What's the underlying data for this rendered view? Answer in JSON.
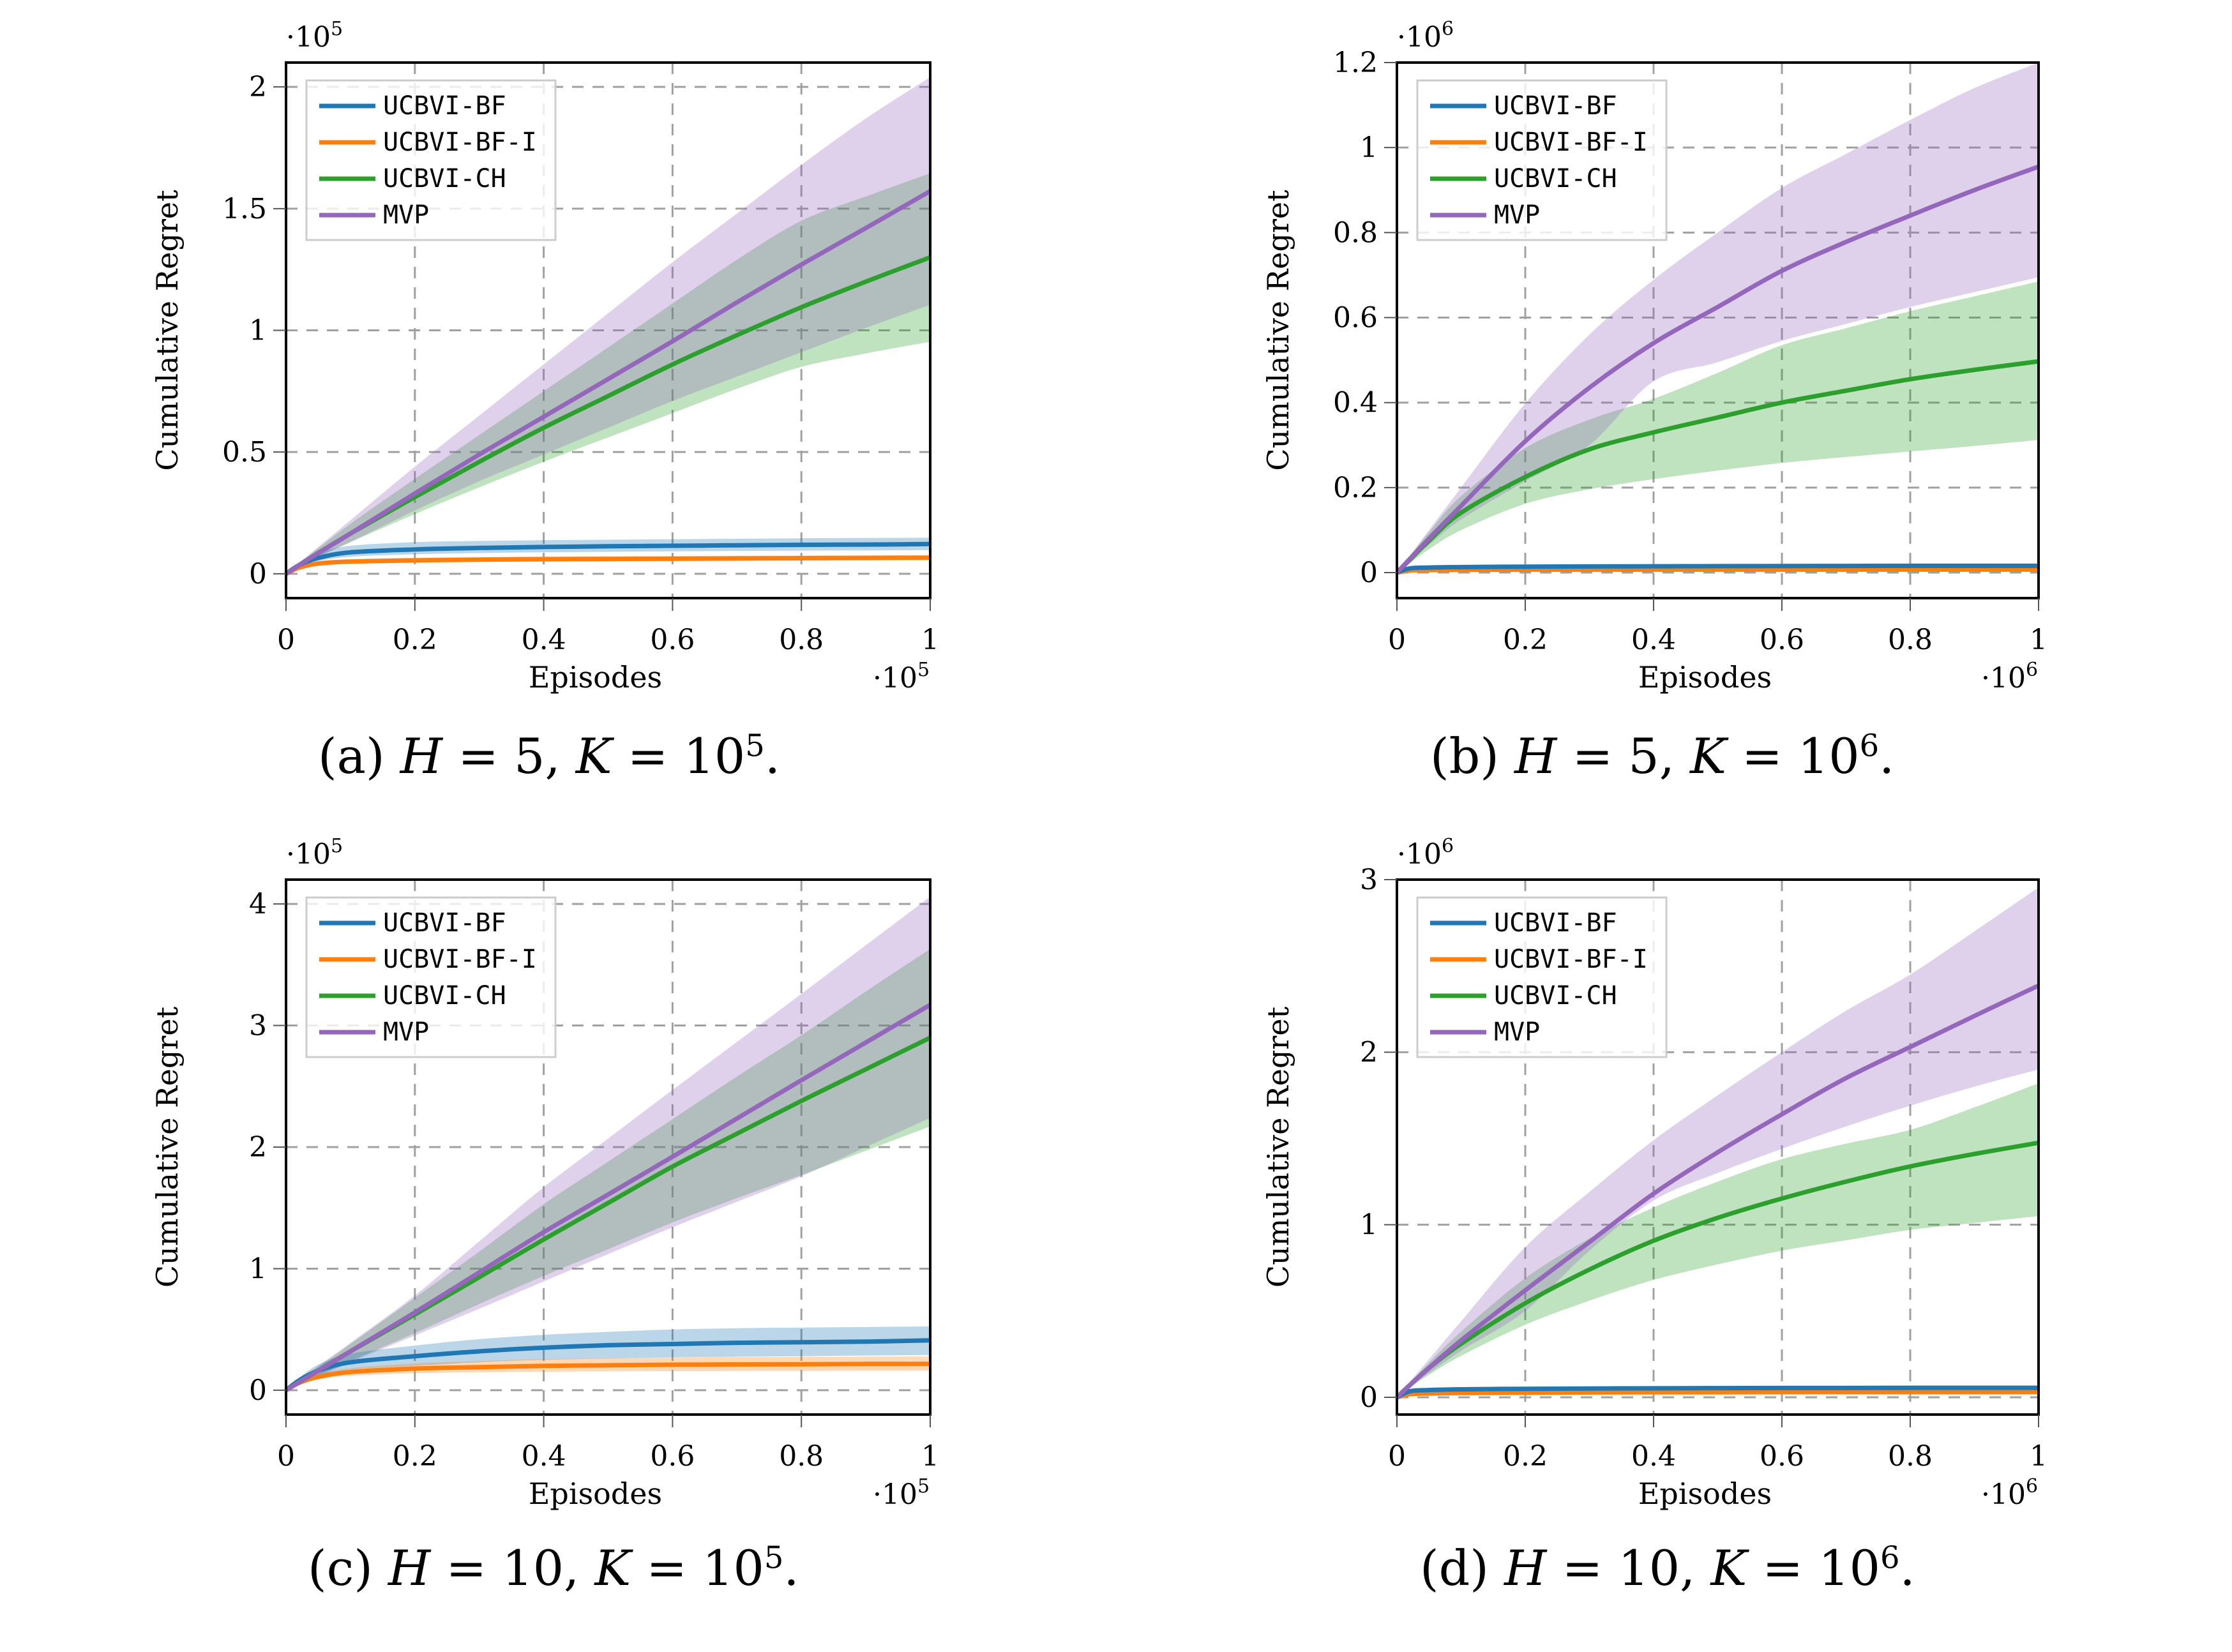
{
  "figure": {
    "panels": [
      {
        "id": "a",
        "caption_prefix": "(a)",
        "caption_H": "H",
        "caption_H_val": "= 5,",
        "caption_K": "K",
        "caption_K_val": "= 10",
        "caption_exp": "5",
        "caption_end": "."
      },
      {
        "id": "b",
        "caption_prefix": "(b)",
        "caption_H": "H",
        "caption_H_val": "= 5,",
        "caption_K": "K",
        "caption_K_val": "= 10",
        "caption_exp": "6",
        "caption_end": "."
      },
      {
        "id": "c",
        "caption_prefix": "(c)",
        "caption_H": "H",
        "caption_H_val": "= 10,",
        "caption_K": "K",
        "caption_K_val": "= 10",
        "caption_exp": "5",
        "caption_end": "."
      },
      {
        "id": "d",
        "caption_prefix": "(d)",
        "caption_H": "H",
        "caption_H_val": "= 10,",
        "caption_K": "K",
        "caption_K_val": "= 10",
        "caption_exp": "6",
        "caption_end": "."
      }
    ]
  },
  "colors": {
    "UCBVI-BF": "#1f77b4",
    "UCBVI-BF-I": "#ff7f0e",
    "UCBVI-CH": "#2ca02c",
    "MVP": "#9467bd",
    "grid": "#a0a0a0",
    "legend_border": "#cccccc"
  },
  "chart_data": [
    {
      "type": "line",
      "title": "(a) H = 5, K = 10^5.",
      "xlabel": "Episodes",
      "ylabel": "Cumulative Regret",
      "x_multiplier": "·10^5",
      "y_multiplier": "·10^5",
      "xlim": [
        0,
        1
      ],
      "ylim": [
        -0.1,
        2.1
      ],
      "xticks": [
        0,
        0.2,
        0.4,
        0.6,
        0.8,
        1
      ],
      "xtick_labels": [
        "0",
        "0.2",
        "0.4",
        "0.6",
        "0.8",
        "1"
      ],
      "yticks": [
        0,
        0.5,
        1,
        1.5,
        2
      ],
      "ytick_labels": [
        "0",
        "0.5",
        "1",
        "1.5",
        "2"
      ],
      "grid": true,
      "legend": "top-left",
      "x": [
        0,
        0.02,
        0.05,
        0.1,
        0.2,
        0.3,
        0.4,
        0.5,
        0.6,
        0.7,
        0.8,
        0.9,
        1.0
      ],
      "series": [
        {
          "name": "UCBVI-BF",
          "values": [
            0,
            0.035,
            0.065,
            0.088,
            0.1,
            0.106,
            0.11,
            0.113,
            0.115,
            0.117,
            0.119,
            0.12,
            0.122
          ],
          "upper": [
            0,
            0.045,
            0.085,
            0.115,
            0.13,
            0.135,
            0.138,
            0.14,
            0.142,
            0.144,
            0.146,
            0.147,
            0.148
          ],
          "lower": [
            0,
            0.028,
            0.052,
            0.07,
            0.08,
            0.085,
            0.088,
            0.09,
            0.092,
            0.094,
            0.095,
            0.096,
            0.097
          ]
        },
        {
          "name": "UCBVI-BF-I",
          "values": [
            0,
            0.025,
            0.042,
            0.05,
            0.055,
            0.058,
            0.06,
            0.061,
            0.062,
            0.063,
            0.064,
            0.065,
            0.066
          ],
          "upper": [
            0,
            0.03,
            0.05,
            0.06,
            0.066,
            0.069,
            0.071,
            0.072,
            0.073,
            0.074,
            0.075,
            0.076,
            0.077
          ],
          "lower": [
            0,
            0.02,
            0.035,
            0.042,
            0.047,
            0.049,
            0.05,
            0.051,
            0.052,
            0.053,
            0.054,
            0.055,
            0.056
          ]
        },
        {
          "name": "UCBVI-CH",
          "values": [
            0,
            0.035,
            0.085,
            0.165,
            0.315,
            0.46,
            0.6,
            0.73,
            0.86,
            0.98,
            1.095,
            1.2,
            1.3
          ],
          "upper": [
            0,
            0.042,
            0.105,
            0.205,
            0.39,
            0.57,
            0.75,
            0.93,
            1.11,
            1.29,
            1.45,
            1.55,
            1.645
          ],
          "lower": [
            0,
            0.03,
            0.07,
            0.13,
            0.245,
            0.355,
            0.46,
            0.56,
            0.66,
            0.76,
            0.85,
            0.905,
            0.953
          ]
        },
        {
          "name": "MVP",
          "values": [
            0,
            0.035,
            0.085,
            0.165,
            0.33,
            0.49,
            0.645,
            0.8,
            0.955,
            1.115,
            1.27,
            1.42,
            1.572
          ],
          "upper": [
            0,
            0.045,
            0.11,
            0.22,
            0.44,
            0.65,
            0.86,
            1.07,
            1.28,
            1.48,
            1.68,
            1.87,
            2.04
          ],
          "lower": [
            0,
            0.03,
            0.07,
            0.13,
            0.26,
            0.38,
            0.49,
            0.6,
            0.71,
            0.81,
            0.91,
            1.01,
            1.105
          ]
        }
      ]
    },
    {
      "type": "line",
      "title": "(b) H = 5, K = 10^6.",
      "xlabel": "Episodes",
      "ylabel": "Cumulative Regret",
      "x_multiplier": "·10^6",
      "y_multiplier": "·10^6",
      "xlim": [
        0,
        1
      ],
      "ylim": [
        -0.06,
        1.2
      ],
      "xticks": [
        0,
        0.2,
        0.4,
        0.6,
        0.8,
        1
      ],
      "xtick_labels": [
        "0",
        "0.2",
        "0.4",
        "0.6",
        "0.8",
        "1"
      ],
      "yticks": [
        0,
        0.2,
        0.4,
        0.6,
        0.8,
        1,
        1.2
      ],
      "ytick_labels": [
        "0",
        "0.2",
        "0.4",
        "0.6",
        "0.8",
        "1",
        "1.2"
      ],
      "grid": true,
      "legend": "top-left",
      "x": [
        0,
        0.02,
        0.05,
        0.1,
        0.2,
        0.3,
        0.4,
        0.5,
        0.6,
        0.7,
        0.8,
        0.9,
        1.0
      ],
      "series": [
        {
          "name": "UCBVI-BF",
          "values": [
            0,
            0.01,
            0.012,
            0.013,
            0.014,
            0.0145,
            0.015,
            0.0152,
            0.0155,
            0.0157,
            0.016,
            0.016,
            0.016
          ],
          "upper": [
            0,
            0.012,
            0.014,
            0.015,
            0.016,
            0.0165,
            0.017,
            0.0172,
            0.0175,
            0.0177,
            0.018,
            0.018,
            0.018
          ],
          "lower": [
            0,
            0.008,
            0.01,
            0.011,
            0.012,
            0.0125,
            0.013,
            0.0132,
            0.0135,
            0.0137,
            0.014,
            0.014,
            0.014
          ]
        },
        {
          "name": "UCBVI-BF-I",
          "values": [
            0,
            0.005,
            0.006,
            0.0065,
            0.007,
            0.007,
            0.007,
            0.007,
            0.007,
            0.007,
            0.007,
            0.007,
            0.007
          ],
          "upper": [
            0,
            0.006,
            0.007,
            0.0075,
            0.008,
            0.008,
            0.008,
            0.008,
            0.008,
            0.008,
            0.008,
            0.008,
            0.008
          ],
          "lower": [
            0,
            0.004,
            0.005,
            0.0055,
            0.006,
            0.006,
            0.006,
            0.006,
            0.006,
            0.006,
            0.006,
            0.006,
            0.006
          ]
        },
        {
          "name": "UCBVI-CH",
          "values": [
            0,
            0.03,
            0.075,
            0.141,
            0.225,
            0.29,
            0.33,
            0.365,
            0.4,
            0.428,
            0.455,
            0.477,
            0.497
          ],
          "upper": [
            0,
            0.038,
            0.095,
            0.18,
            0.293,
            0.36,
            0.409,
            0.47,
            0.535,
            0.575,
            0.615,
            0.65,
            0.685
          ],
          "lower": [
            0,
            0.022,
            0.055,
            0.1,
            0.162,
            0.196,
            0.22,
            0.24,
            0.258,
            0.272,
            0.285,
            0.298,
            0.312
          ]
        },
        {
          "name": "MVP",
          "values": [
            0,
            0.032,
            0.08,
            0.157,
            0.309,
            0.435,
            0.54,
            0.625,
            0.71,
            0.778,
            0.84,
            0.9,
            0.955
          ],
          "upper": [
            0,
            0.04,
            0.1,
            0.2,
            0.398,
            0.56,
            0.689,
            0.8,
            0.905,
            0.985,
            1.065,
            1.14,
            1.2
          ],
          "lower": [
            0,
            0.026,
            0.065,
            0.125,
            0.215,
            0.3,
            0.45,
            0.495,
            0.545,
            0.585,
            0.625,
            0.66,
            0.695
          ]
        }
      ]
    },
    {
      "type": "line",
      "title": "(c) H = 10, K = 10^5.",
      "xlabel": "Episodes",
      "ylabel": "Cumulative Regret",
      "x_multiplier": "·10^5",
      "y_multiplier": "·10^5",
      "xlim": [
        0,
        1
      ],
      "ylim": [
        -0.2,
        4.2
      ],
      "xticks": [
        0,
        0.2,
        0.4,
        0.6,
        0.8,
        1
      ],
      "xtick_labels": [
        "0",
        "0.2",
        "0.4",
        "0.6",
        "0.8",
        "1"
      ],
      "yticks": [
        0,
        1,
        2,
        3,
        4
      ],
      "ytick_labels": [
        "0",
        "1",
        "2",
        "3",
        "4"
      ],
      "grid": true,
      "legend": "top-left",
      "x": [
        0,
        0.02,
        0.05,
        0.1,
        0.2,
        0.3,
        0.4,
        0.5,
        0.6,
        0.7,
        0.8,
        0.9,
        1.0
      ],
      "series": [
        {
          "name": "UCBVI-BF",
          "values": [
            0,
            0.08,
            0.16,
            0.23,
            0.28,
            0.32,
            0.35,
            0.37,
            0.38,
            0.39,
            0.395,
            0.4,
            0.41
          ],
          "upper": [
            0,
            0.1,
            0.21,
            0.3,
            0.367,
            0.42,
            0.456,
            0.48,
            0.5,
            0.51,
            0.515,
            0.52,
            0.525
          ],
          "lower": [
            0,
            0.06,
            0.12,
            0.17,
            0.2,
            0.23,
            0.25,
            0.26,
            0.27,
            0.275,
            0.28,
            0.285,
            0.29
          ]
        },
        {
          "name": "UCBVI-BF-I",
          "values": [
            0,
            0.06,
            0.11,
            0.15,
            0.178,
            0.19,
            0.2,
            0.205,
            0.21,
            0.212,
            0.214,
            0.216,
            0.217
          ],
          "upper": [
            0,
            0.07,
            0.13,
            0.18,
            0.22,
            0.24,
            0.255,
            0.262,
            0.268,
            0.272,
            0.274,
            0.276,
            0.278
          ],
          "lower": [
            0,
            0.05,
            0.09,
            0.12,
            0.14,
            0.148,
            0.152,
            0.155,
            0.157,
            0.158,
            0.159,
            0.16,
            0.16
          ]
        },
        {
          "name": "UCBVI-CH",
          "values": [
            0,
            0.065,
            0.16,
            0.32,
            0.623,
            0.93,
            1.24,
            1.54,
            1.84,
            2.11,
            2.38,
            2.64,
            2.9
          ],
          "upper": [
            0,
            0.078,
            0.19,
            0.38,
            0.76,
            1.14,
            1.53,
            1.88,
            2.23,
            2.58,
            2.92,
            3.28,
            3.63
          ],
          "lower": [
            0,
            0.05,
            0.12,
            0.24,
            0.47,
            0.71,
            0.94,
            1.16,
            1.38,
            1.58,
            1.77,
            1.97,
            2.17
          ]
        },
        {
          "name": "MVP",
          "values": [
            0,
            0.065,
            0.16,
            0.32,
            0.64,
            0.97,
            1.3,
            1.61,
            1.92,
            2.235,
            2.55,
            2.86,
            3.17
          ],
          "upper": [
            0,
            0.08,
            0.2,
            0.39,
            0.78,
            1.225,
            1.67,
            2.07,
            2.47,
            2.865,
            3.26,
            3.66,
            4.06
          ],
          "lower": [
            0,
            0.045,
            0.11,
            0.23,
            0.45,
            0.67,
            0.895,
            1.12,
            1.34,
            1.55,
            1.76,
            2.0,
            2.24
          ]
        }
      ]
    },
    {
      "type": "line",
      "title": "(d) H = 10, K = 10^6.",
      "xlabel": "Episodes",
      "ylabel": "Cumulative Regret",
      "x_multiplier": "·10^6",
      "y_multiplier": "·10^6",
      "xlim": [
        0,
        1
      ],
      "ylim": [
        -0.1,
        3.0
      ],
      "xticks": [
        0,
        0.2,
        0.4,
        0.6,
        0.8,
        1
      ],
      "xtick_labels": [
        "0",
        "0.2",
        "0.4",
        "0.6",
        "0.8",
        "1"
      ],
      "yticks": [
        0,
        1,
        2,
        3
      ],
      "ytick_labels": [
        "0",
        "1",
        "2",
        "3"
      ],
      "grid": true,
      "legend": "top-left",
      "x": [
        0,
        0.02,
        0.05,
        0.1,
        0.2,
        0.3,
        0.4,
        0.5,
        0.6,
        0.7,
        0.8,
        0.9,
        1.0
      ],
      "series": [
        {
          "name": "UCBVI-BF",
          "values": [
            0,
            0.035,
            0.042,
            0.046,
            0.049,
            0.051,
            0.052,
            0.053,
            0.054,
            0.054,
            0.055,
            0.055,
            0.055
          ],
          "upper": [
            0,
            0.04,
            0.047,
            0.051,
            0.054,
            0.056,
            0.057,
            0.058,
            0.059,
            0.059,
            0.06,
            0.06,
            0.06
          ],
          "lower": [
            0,
            0.03,
            0.037,
            0.041,
            0.044,
            0.046,
            0.047,
            0.048,
            0.049,
            0.049,
            0.05,
            0.05,
            0.05
          ]
        },
        {
          "name": "UCBVI-BF-I",
          "values": [
            0,
            0.018,
            0.022,
            0.025,
            0.027,
            0.028,
            0.029,
            0.029,
            0.03,
            0.03,
            0.03,
            0.03,
            0.03
          ],
          "upper": [
            0,
            0.021,
            0.025,
            0.028,
            0.03,
            0.031,
            0.032,
            0.032,
            0.033,
            0.033,
            0.033,
            0.033,
            0.033
          ],
          "lower": [
            0,
            0.015,
            0.019,
            0.022,
            0.024,
            0.025,
            0.026,
            0.026,
            0.027,
            0.027,
            0.027,
            0.027,
            0.027
          ]
        },
        {
          "name": "UCBVI-CH",
          "values": [
            0,
            0.07,
            0.17,
            0.31,
            0.545,
            0.74,
            0.907,
            1.04,
            1.152,
            1.25,
            1.338,
            1.41,
            1.475
          ],
          "upper": [
            0,
            0.08,
            0.2,
            0.38,
            0.69,
            0.92,
            1.1,
            1.25,
            1.38,
            1.47,
            1.55,
            1.68,
            1.82
          ],
          "lower": [
            0,
            0.055,
            0.13,
            0.24,
            0.42,
            0.56,
            0.68,
            0.77,
            0.85,
            0.91,
            0.97,
            1.01,
            1.05
          ]
        },
        {
          "name": "MVP",
          "values": [
            0,
            0.07,
            0.17,
            0.33,
            0.62,
            0.9,
            1.18,
            1.42,
            1.64,
            1.85,
            2.03,
            2.21,
            2.386
          ],
          "upper": [
            0,
            0.09,
            0.22,
            0.44,
            0.87,
            1.19,
            1.49,
            1.75,
            2.0,
            2.24,
            2.45,
            2.7,
            2.955
          ],
          "lower": [
            0,
            0.06,
            0.14,
            0.27,
            0.5,
            0.85,
            1.14,
            1.3,
            1.44,
            1.57,
            1.69,
            1.8,
            1.9
          ]
        }
      ]
    }
  ]
}
